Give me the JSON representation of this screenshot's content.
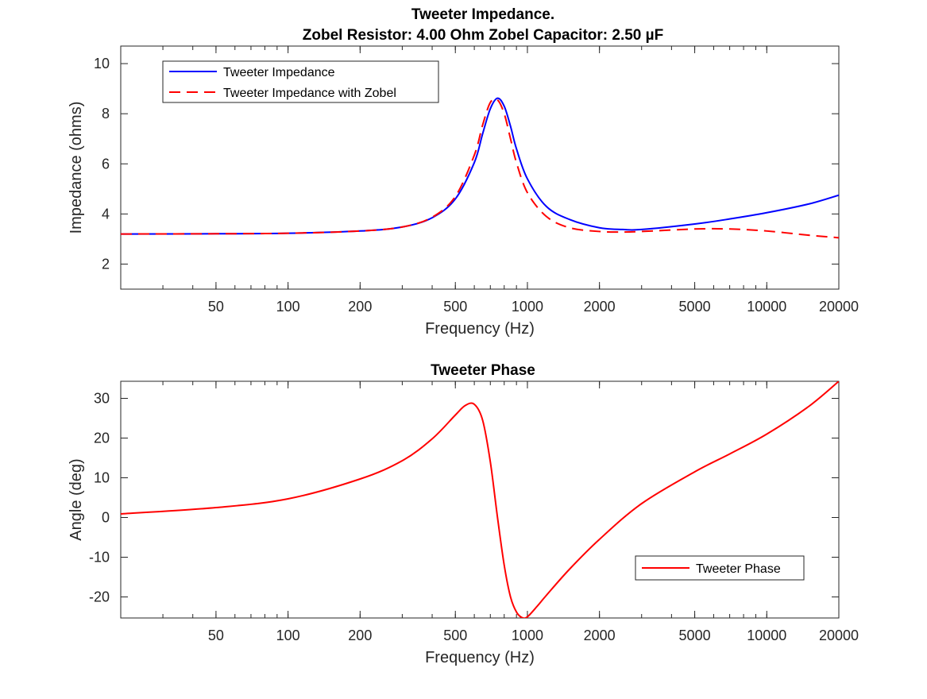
{
  "colors": {
    "blue": "#0000ff",
    "red": "#ff0000",
    "axis": "#262626"
  },
  "chart_data": [
    {
      "type": "line",
      "title_lines": [
        "Tweeter Impedance.",
        "Zobel Resistor: 4.00 Ohm Zobel Capacitor: 2.50 µF"
      ],
      "xlabel": "Frequency (Hz)",
      "ylabel": "Impedance (ohms)",
      "xscale": "log",
      "xlim": [
        20,
        20000
      ],
      "ylim": [
        1,
        10.7
      ],
      "xticks": [
        50,
        100,
        200,
        500,
        1000,
        2000,
        5000,
        10000,
        20000
      ],
      "yticks": [
        2,
        4,
        6,
        8,
        10
      ],
      "legend_location": "top-left",
      "grid": false,
      "series": [
        {
          "name": "Tweeter Impedance",
          "style": "solid",
          "color": "#0000ff",
          "x": [
            20,
            50,
            100,
            200,
            300,
            400,
            500,
            600,
            650,
            700,
            750,
            800,
            850,
            900,
            1000,
            1200,
            1500,
            2000,
            2500,
            3000,
            5000,
            7000,
            10000,
            15000,
            20000
          ],
          "y": [
            3.2,
            3.21,
            3.23,
            3.32,
            3.48,
            3.85,
            4.6,
            6.05,
            7.2,
            8.2,
            8.62,
            8.3,
            7.5,
            6.6,
            5.4,
            4.3,
            3.78,
            3.45,
            3.38,
            3.38,
            3.6,
            3.8,
            4.05,
            4.4,
            4.75
          ]
        },
        {
          "name": "Tweeter Impedance with Zobel",
          "style": "dashed",
          "color": "#ff0000",
          "x": [
            20,
            50,
            100,
            200,
            300,
            400,
            500,
            600,
            650,
            700,
            750,
            800,
            850,
            900,
            1000,
            1200,
            1500,
            2000,
            2500,
            3000,
            5000,
            7000,
            10000,
            15000,
            20000
          ],
          "y": [
            3.2,
            3.21,
            3.23,
            3.32,
            3.48,
            3.87,
            4.7,
            6.35,
            7.55,
            8.45,
            8.55,
            8.0,
            7.0,
            6.05,
            4.85,
            3.9,
            3.45,
            3.3,
            3.28,
            3.3,
            3.4,
            3.4,
            3.32,
            3.15,
            3.05
          ]
        }
      ]
    },
    {
      "type": "line",
      "title_lines": [
        "Tweeter Phase"
      ],
      "xlabel": "Frequency (Hz)",
      "ylabel": "Angle (deg)",
      "xscale": "log",
      "xlim": [
        20,
        20000
      ],
      "ylim": [
        -25.3,
        34.3
      ],
      "xticks": [
        50,
        100,
        200,
        500,
        1000,
        2000,
        5000,
        10000,
        20000
      ],
      "yticks": [
        -20,
        -10,
        0,
        10,
        20,
        30
      ],
      "legend_location": "lower-right",
      "grid": false,
      "series": [
        {
          "name": "Tweeter Phase",
          "style": "solid",
          "color": "#ff0000",
          "x": [
            20,
            50,
            100,
            200,
            300,
            400,
            500,
            550,
            600,
            650,
            700,
            750,
            800,
            850,
            900,
            950,
            1000,
            1100,
            1200,
            1500,
            2000,
            3000,
            5000,
            7000,
            10000,
            15000,
            20000
          ],
          "y": [
            0.9,
            2.5,
            4.7,
            9.7,
            14.3,
            19.8,
            25.8,
            28.2,
            28.5,
            24.5,
            14.0,
            0.0,
            -12.0,
            -20.0,
            -23.8,
            -25.2,
            -25.0,
            -22.3,
            -19.6,
            -13.0,
            -5.5,
            3.5,
            11.5,
            16.0,
            21.0,
            28.0,
            34.3
          ]
        }
      ]
    }
  ]
}
